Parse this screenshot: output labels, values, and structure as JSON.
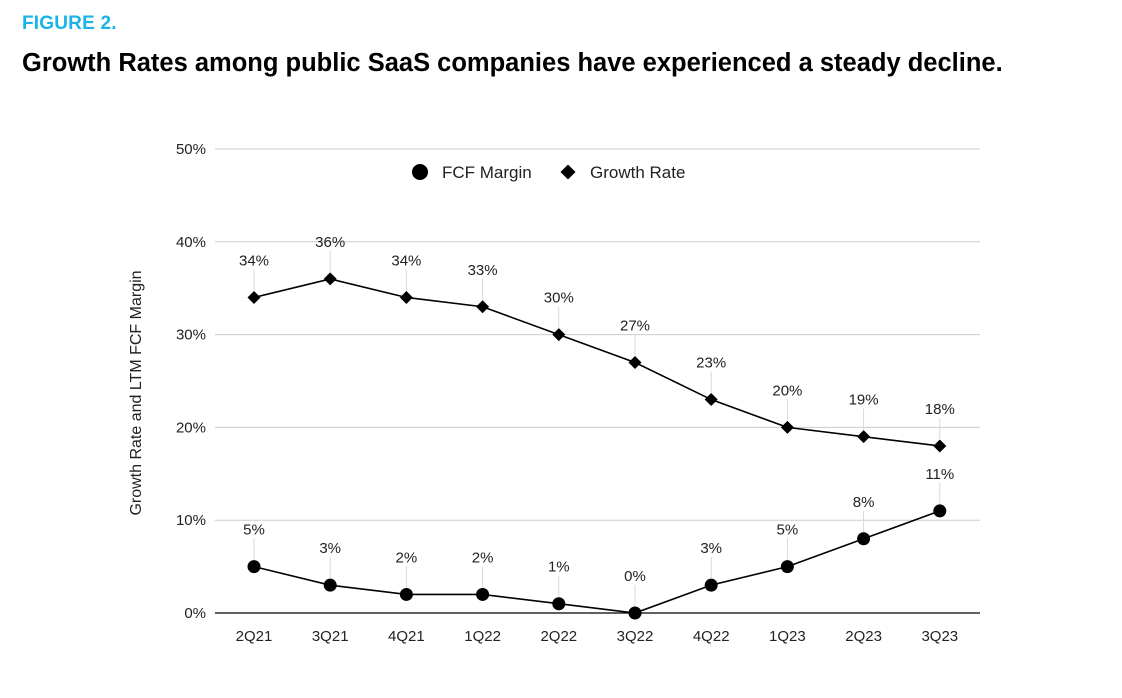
{
  "figure_label": "FIGURE 2.",
  "title": "Growth Rates among public SaaS companies have experienced a steady decline.",
  "colors": {
    "figure_label": "#1ab3e6",
    "title": "#000000",
    "series": "#000000",
    "gridline": "#cccccc",
    "leader_line": "#d9d9d9",
    "text": "#222222"
  },
  "chart_data": {
    "type": "line",
    "categories": [
      "2Q21",
      "3Q21",
      "4Q21",
      "1Q22",
      "2Q22",
      "3Q22",
      "4Q22",
      "1Q23",
      "2Q23",
      "3Q23"
    ],
    "series": [
      {
        "name": "FCF Margin",
        "marker": "circle",
        "values": [
          5,
          3,
          2,
          2,
          1,
          0,
          3,
          5,
          8,
          11
        ],
        "labels": [
          "5%",
          "3%",
          "2%",
          "2%",
          "1%",
          "0%",
          "3%",
          "5%",
          "8%",
          "11%"
        ]
      },
      {
        "name": "Growth Rate",
        "marker": "diamond",
        "values": [
          34,
          36,
          34,
          33,
          30,
          27,
          23,
          20,
          19,
          18
        ],
        "labels": [
          "34%",
          "36%",
          "34%",
          "33%",
          "30%",
          "27%",
          "23%",
          "20%",
          "19%",
          "18%"
        ]
      }
    ],
    "ylabel": "Growth Rate and LTM FCF Margin",
    "ylim": [
      0,
      50
    ],
    "yticks": [
      0,
      10,
      20,
      30,
      40,
      50
    ],
    "ytick_labels": [
      "0%",
      "10%",
      "20%",
      "30%",
      "40%",
      "50%"
    ],
    "grid": true,
    "legend": {
      "position": "top-center",
      "entries": [
        "FCF Margin",
        "Growth Rate"
      ]
    },
    "data_labels": true
  }
}
